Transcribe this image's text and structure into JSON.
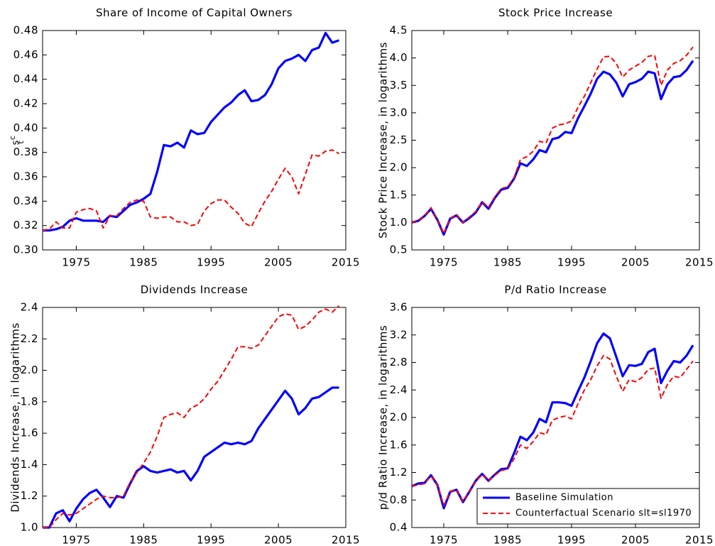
{
  "chart_data": [
    {
      "type": "line",
      "title": "Share of Income of Capital Owners",
      "ylabel": "s",
      "ylabel_sup": "c",
      "ylabel_sub": "t",
      "x": [
        1970,
        1971,
        1972,
        1973,
        1974,
        1975,
        1976,
        1977,
        1978,
        1979,
        1980,
        1981,
        1982,
        1983,
        1984,
        1985,
        1986,
        1987,
        1988,
        1989,
        1990,
        1991,
        1992,
        1993,
        1994,
        1995,
        1996,
        1997,
        1998,
        1999,
        2000,
        2001,
        2002,
        2003,
        2004,
        2005,
        2006,
        2007,
        2008,
        2009,
        2010,
        2011,
        2012,
        2013,
        2014
      ],
      "xlim": [
        1970,
        2015
      ],
      "xticks": [
        1975,
        1985,
        1995,
        2005,
        2015
      ],
      "ylim": [
        0.3,
        0.48
      ],
      "yticks": [
        {
          "value": 0.3,
          "label": "0.30"
        },
        0.32,
        0.34,
        0.36,
        0.38,
        {
          "value": 0.4,
          "label": "0.40"
        },
        0.42,
        0.44,
        0.46,
        0.48
      ],
      "series": [
        {
          "color": "#0000ff",
          "style": "solid",
          "values": [
            0.316,
            0.316,
            0.317,
            0.319,
            0.324,
            0.326,
            0.324,
            0.324,
            0.324,
            0.323,
            0.328,
            0.327,
            0.332,
            0.337,
            0.339,
            0.342,
            0.346,
            0.364,
            0.386,
            0.385,
            0.388,
            0.384,
            0.398,
            0.395,
            0.396,
            0.405,
            0.411,
            0.417,
            0.421,
            0.427,
            0.431,
            0.422,
            0.423,
            0.427,
            0.436,
            0.449,
            0.455,
            0.457,
            0.46,
            0.455,
            0.464,
            0.466,
            0.478,
            0.47,
            0.472
          ]
        },
        {
          "color": "#ff0000",
          "style": "dashed",
          "values": [
            0.316,
            0.317,
            0.323,
            0.318,
            0.318,
            0.331,
            0.333,
            0.334,
            0.332,
            0.318,
            0.328,
            0.328,
            0.334,
            0.339,
            0.341,
            0.34,
            0.327,
            0.326,
            0.327,
            0.327,
            0.323,
            0.323,
            0.32,
            0.321,
            0.332,
            0.338,
            0.341,
            0.341,
            0.335,
            0.33,
            0.322,
            0.319,
            0.33,
            0.34,
            0.348,
            0.358,
            0.367,
            0.36,
            0.346,
            0.362,
            0.378,
            0.377,
            0.381,
            0.382,
            0.379
          ]
        }
      ]
    },
    {
      "type": "line",
      "title": "Stock Price Increase",
      "ylabel": "Stock Price Increase, in logarithms",
      "x": [
        1970,
        1971,
        1972,
        1973,
        1974,
        1975,
        1976,
        1977,
        1978,
        1979,
        1980,
        1981,
        1982,
        1983,
        1984,
        1985,
        1986,
        1987,
        1988,
        1989,
        1990,
        1991,
        1992,
        1993,
        1994,
        1995,
        1996,
        1997,
        1998,
        1999,
        2000,
        2001,
        2002,
        2003,
        2004,
        2005,
        2006,
        2007,
        2008,
        2009,
        2010,
        2011,
        2012,
        2013,
        2014
      ],
      "xlim": [
        1970,
        2015
      ],
      "xticks": [
        1975,
        1985,
        1995,
        2005,
        2015
      ],
      "ylim": [
        0.5,
        4.5
      ],
      "yticks": [
        0.5,
        {
          "value": 1,
          "label": "1.0"
        },
        1.5,
        {
          "value": 2,
          "label": "2.0"
        },
        2.5,
        {
          "value": 3,
          "label": "3.0"
        },
        3.5,
        {
          "value": 4,
          "label": "4.0"
        },
        4.5
      ],
      "series": [
        {
          "color": "#0000ff",
          "style": "solid",
          "values": [
            1.0,
            1.03,
            1.12,
            1.25,
            1.05,
            0.78,
            1.07,
            1.13,
            1.0,
            1.08,
            1.18,
            1.37,
            1.25,
            1.45,
            1.6,
            1.63,
            1.8,
            2.08,
            2.03,
            2.15,
            2.32,
            2.28,
            2.52,
            2.55,
            2.65,
            2.63,
            2.9,
            3.12,
            3.35,
            3.62,
            3.75,
            3.7,
            3.55,
            3.3,
            3.52,
            3.56,
            3.62,
            3.75,
            3.72,
            3.25,
            3.52,
            3.65,
            3.67,
            3.78,
            3.95
          ]
        },
        {
          "color": "#ff0000",
          "style": "dashed",
          "values": [
            1.0,
            1.03,
            1.12,
            1.27,
            1.05,
            0.8,
            1.07,
            1.15,
            1.0,
            1.1,
            1.2,
            1.38,
            1.28,
            1.47,
            1.62,
            1.65,
            1.82,
            2.15,
            2.2,
            2.3,
            2.48,
            2.45,
            2.72,
            2.78,
            2.8,
            2.85,
            3.1,
            3.3,
            3.55,
            3.8,
            4.02,
            4.03,
            3.9,
            3.65,
            3.78,
            3.85,
            3.92,
            4.03,
            4.05,
            3.5,
            3.78,
            3.9,
            3.95,
            4.05,
            4.2
          ]
        }
      ]
    },
    {
      "type": "line",
      "title": "Dividends Increase",
      "ylabel": "Dividends Increase, in logarithms",
      "x": [
        1970,
        1971,
        1972,
        1973,
        1974,
        1975,
        1976,
        1977,
        1978,
        1979,
        1980,
        1981,
        1982,
        1983,
        1984,
        1985,
        1986,
        1987,
        1988,
        1989,
        1990,
        1991,
        1992,
        1993,
        1994,
        1995,
        1996,
        1997,
        1998,
        1999,
        2000,
        2001,
        2002,
        2003,
        2004,
        2005,
        2006,
        2007,
        2008,
        2009,
        2010,
        2011,
        2012,
        2013,
        2014
      ],
      "xlim": [
        1970,
        2015
      ],
      "xticks": [
        1975,
        1985,
        1995,
        2005,
        2015
      ],
      "ylim": [
        1.0,
        2.4
      ],
      "yticks": [
        {
          "value": 1,
          "label": "1.0"
        },
        1.2,
        1.4,
        1.6,
        1.8,
        {
          "value": 2,
          "label": "2.0"
        },
        2.2,
        2.4
      ],
      "series": [
        {
          "color": "#0000ff",
          "style": "solid",
          "values": [
            1.0,
            1.0,
            1.09,
            1.11,
            1.04,
            1.12,
            1.18,
            1.22,
            1.24,
            1.19,
            1.13,
            1.2,
            1.19,
            1.28,
            1.36,
            1.39,
            1.36,
            1.35,
            1.36,
            1.37,
            1.35,
            1.36,
            1.3,
            1.36,
            1.45,
            1.48,
            1.51,
            1.54,
            1.53,
            1.54,
            1.53,
            1.55,
            1.63,
            1.69,
            1.75,
            1.81,
            1.87,
            1.82,
            1.72,
            1.76,
            1.82,
            1.83,
            1.86,
            1.89,
            1.89
          ]
        },
        {
          "color": "#ff0000",
          "style": "dashed",
          "values": [
            1.0,
            1.0,
            1.05,
            1.09,
            1.08,
            1.09,
            1.12,
            1.15,
            1.18,
            1.2,
            1.19,
            1.19,
            1.2,
            1.29,
            1.35,
            1.41,
            1.48,
            1.58,
            1.7,
            1.72,
            1.73,
            1.7,
            1.76,
            1.78,
            1.82,
            1.88,
            1.93,
            2.0,
            2.07,
            2.15,
            2.15,
            2.14,
            2.16,
            2.22,
            2.28,
            2.34,
            2.36,
            2.35,
            2.26,
            2.28,
            2.32,
            2.37,
            2.39,
            2.37,
            2.41
          ]
        }
      ]
    },
    {
      "type": "line",
      "title": "P/d Ratio Increase",
      "ylabel": "p/d Ratio Increase, in logarithms",
      "x": [
        1970,
        1971,
        1972,
        1973,
        1974,
        1975,
        1976,
        1977,
        1978,
        1979,
        1980,
        1981,
        1982,
        1983,
        1984,
        1985,
        1986,
        1987,
        1988,
        1989,
        1990,
        1991,
        1992,
        1993,
        1994,
        1995,
        1996,
        1997,
        1998,
        1999,
        2000,
        2001,
        2002,
        2003,
        2004,
        2005,
        2006,
        2007,
        2008,
        2009,
        2010,
        2011,
        2012,
        2013,
        2014
      ],
      "xlim": [
        1970,
        2015
      ],
      "xticks": [
        1975,
        1985,
        1995,
        2005,
        2015
      ],
      "ylim": [
        0.4,
        3.6
      ],
      "yticks": [
        0.4,
        0.8,
        1.2,
        1.6,
        {
          "value": 2,
          "label": "2.0"
        },
        2.4,
        2.8,
        3.2,
        3.6
      ],
      "legend": "lower right",
      "series": [
        {
          "name": "Baseline Simulation",
          "color": "#0000ff",
          "style": "solid",
          "values": [
            1.0,
            1.04,
            1.05,
            1.16,
            1.02,
            0.68,
            0.92,
            0.95,
            0.77,
            0.92,
            1.08,
            1.18,
            1.08,
            1.17,
            1.25,
            1.26,
            1.48,
            1.72,
            1.67,
            1.78,
            1.98,
            1.93,
            2.22,
            2.22,
            2.21,
            2.17,
            2.38,
            2.58,
            2.82,
            3.08,
            3.22,
            3.15,
            2.88,
            2.6,
            2.76,
            2.75,
            2.78,
            2.95,
            3.0,
            2.5,
            2.68,
            2.82,
            2.8,
            2.9,
            3.05
          ]
        },
        {
          "name": "Counterfactual Scenario slt=sl1970",
          "color": "#ff0000",
          "style": "dashed",
          "values": [
            1.0,
            1.02,
            1.04,
            1.15,
            1.02,
            0.72,
            0.92,
            0.95,
            0.78,
            0.92,
            1.07,
            1.17,
            1.08,
            1.16,
            1.23,
            1.25,
            1.4,
            1.6,
            1.55,
            1.65,
            1.78,
            1.75,
            1.96,
            2.0,
            2.02,
            1.98,
            2.2,
            2.4,
            2.55,
            2.75,
            2.9,
            2.85,
            2.6,
            2.38,
            2.55,
            2.52,
            2.58,
            2.7,
            2.72,
            2.28,
            2.48,
            2.6,
            2.58,
            2.7,
            2.82
          ]
        }
      ]
    }
  ]
}
